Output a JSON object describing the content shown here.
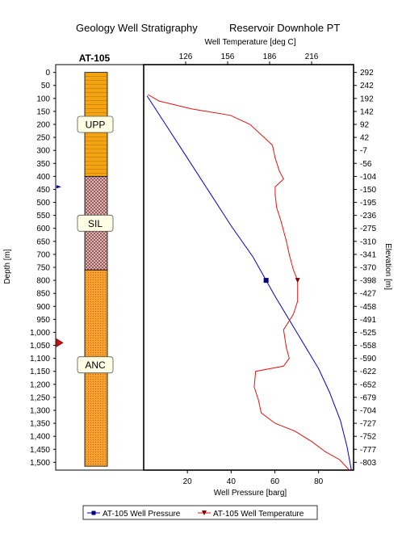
{
  "title": "Geology Well Stratigraphy",
  "subtitle": "Reservoir Downhole PT",
  "well_label": "AT-105",
  "colors": {
    "pressure": "#0000cc",
    "temperature": "#e81010",
    "upp_fill": "#f4a312",
    "sil_fill": "#c8a0a0",
    "anc_fill": "#f6a030",
    "label_box": "#ffffe6"
  },
  "chart_data": {
    "type": "line",
    "title": "Reservoir Downhole PT",
    "depth_axis": {
      "label": "Depth [m]",
      "range": [
        -30,
        1530
      ],
      "ticks": [
        "0",
        "50",
        "100",
        "150",
        "200",
        "250",
        "300",
        "350",
        "400",
        "450",
        "500",
        "550",
        "600",
        "650",
        "700",
        "750",
        "800",
        "850",
        "900",
        "950",
        "1,000",
        "1,050",
        "1,100",
        "1,150",
        "1,200",
        "1,250",
        "1,300",
        "1,350",
        "1,400",
        "1,450",
        "1,500"
      ]
    },
    "elevation_axis": {
      "label": "Elevation [m]",
      "ticks": [
        "292",
        "242",
        "192",
        "142",
        "92",
        "42",
        "-7",
        "-56",
        "-104",
        "-150",
        "-195",
        "-236",
        "-275",
        "-310",
        "-341",
        "-370",
        "-398",
        "-427",
        "-458",
        "-491",
        "-525",
        "-558",
        "-590",
        "-622",
        "-652",
        "-679",
        "-704",
        "-727",
        "-752",
        "-777",
        "-803"
      ]
    },
    "pressure_axis": {
      "label": "Well Pressure [barg]",
      "range": [
        0,
        96
      ],
      "ticks": [
        "20",
        "40",
        "60",
        "80"
      ]
    },
    "temperature_axis": {
      "label": "Well Temperature [deg C]",
      "range": [
        96,
        246
      ],
      "ticks": [
        "126",
        "156",
        "186",
        "216"
      ]
    },
    "formations": [
      {
        "name": "UPP",
        "top": 0,
        "bottom": 400
      },
      {
        "name": "SIL",
        "top": 400,
        "bottom": 760
      },
      {
        "name": "ANC",
        "top": 760,
        "bottom": 1530
      }
    ],
    "markers": [
      {
        "type": "blue-arrow",
        "depth": 440
      },
      {
        "type": "red-arrow",
        "depth": 1040
      }
    ],
    "series": [
      {
        "name": "AT-105 Well Pressure",
        "axis": "pressure",
        "points": [
          [
            1.5,
            90
          ],
          [
            10,
            200
          ],
          [
            20,
            330
          ],
          [
            30,
            460
          ],
          [
            40,
            590
          ],
          [
            50,
            710
          ],
          [
            56,
            800
          ],
          [
            60,
            860
          ],
          [
            70,
            1000
          ],
          [
            80,
            1140
          ],
          [
            85,
            1230
          ],
          [
            90,
            1340
          ],
          [
            93,
            1440
          ],
          [
            95,
            1530
          ]
        ]
      },
      {
        "name": "AT-105 Well Temperature",
        "axis": "temperature",
        "points": [
          [
            99,
            85
          ],
          [
            107,
            110
          ],
          [
            130,
            140
          ],
          [
            158,
            165
          ],
          [
            172,
            200
          ],
          [
            184,
            260
          ],
          [
            188,
            280
          ],
          [
            190,
            330
          ],
          [
            193,
            380
          ],
          [
            196,
            410
          ],
          [
            190,
            440
          ],
          [
            190,
            470
          ],
          [
            191,
            520
          ],
          [
            194,
            570
          ],
          [
            198,
            650
          ],
          [
            200,
            700
          ],
          [
            203,
            760
          ],
          [
            206,
            800
          ],
          [
            206,
            880
          ],
          [
            203,
            930
          ],
          [
            196,
            990
          ],
          [
            198,
            1060
          ],
          [
            200,
            1100
          ],
          [
            196,
            1130
          ],
          [
            176,
            1150
          ],
          [
            175,
            1210
          ],
          [
            178,
            1260
          ],
          [
            180,
            1310
          ],
          [
            190,
            1350
          ],
          [
            204,
            1380
          ],
          [
            216,
            1420
          ],
          [
            226,
            1460
          ],
          [
            236,
            1490
          ],
          [
            243,
            1530
          ]
        ]
      }
    ],
    "markers_on_series": [
      {
        "series": "AT-105 Well Pressure",
        "x": 56,
        "depth": 800
      },
      {
        "series": "AT-105 Well Temperature",
        "x": 206,
        "depth": 800
      }
    ],
    "legend": {
      "placement": "bottom",
      "entries": [
        "AT-105 Well Pressure",
        "AT-105 Well Temperature"
      ]
    },
    "grid": false
  }
}
